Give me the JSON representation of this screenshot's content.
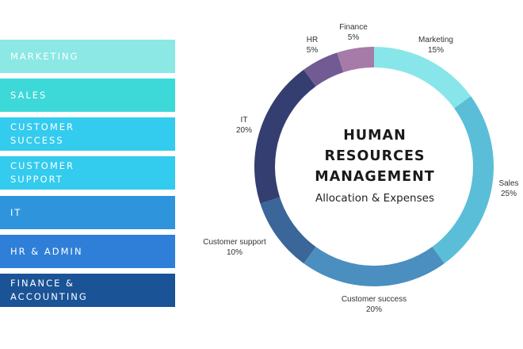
{
  "legend": [
    {
      "label": "MARKETING",
      "color": "#8BE8E5"
    },
    {
      "label": "SALES",
      "color": "#3DD8D8"
    },
    {
      "label": "CUSTOMER\nSUCCESS",
      "color": "#33CBEE"
    },
    {
      "label": "CUSTOMER\nSUPPORT",
      "color": "#33CBEE"
    },
    {
      "label": "IT",
      "color": "#2E95DC"
    },
    {
      "label": "HR & ADMIN",
      "color": "#2F7FD8"
    },
    {
      "label": "FINANCE &\nACCOUNTING",
      "color": "#1A5396"
    }
  ],
  "center": {
    "title_line1": "HUMAN",
    "title_line2": "RESOURCES",
    "title_line3": "MANAGEMENT",
    "subtitle": "Allocation & Expenses"
  },
  "chart_data": {
    "type": "pie",
    "donut": true,
    "categories": [
      "Marketing",
      "Sales",
      "Customer success",
      "Customer support",
      "IT",
      "HR",
      "Finance"
    ],
    "values": [
      15,
      25,
      20,
      10,
      20,
      5,
      5
    ],
    "value_labels": [
      "15%",
      "25%",
      "20%",
      "10%",
      "20%",
      "5%",
      "5%"
    ],
    "colors": [
      "#88E6EA",
      "#5BBED8",
      "#4A8FBF",
      "#3A6699",
      "#343E70",
      "#715B92",
      "#A67BA8"
    ]
  }
}
